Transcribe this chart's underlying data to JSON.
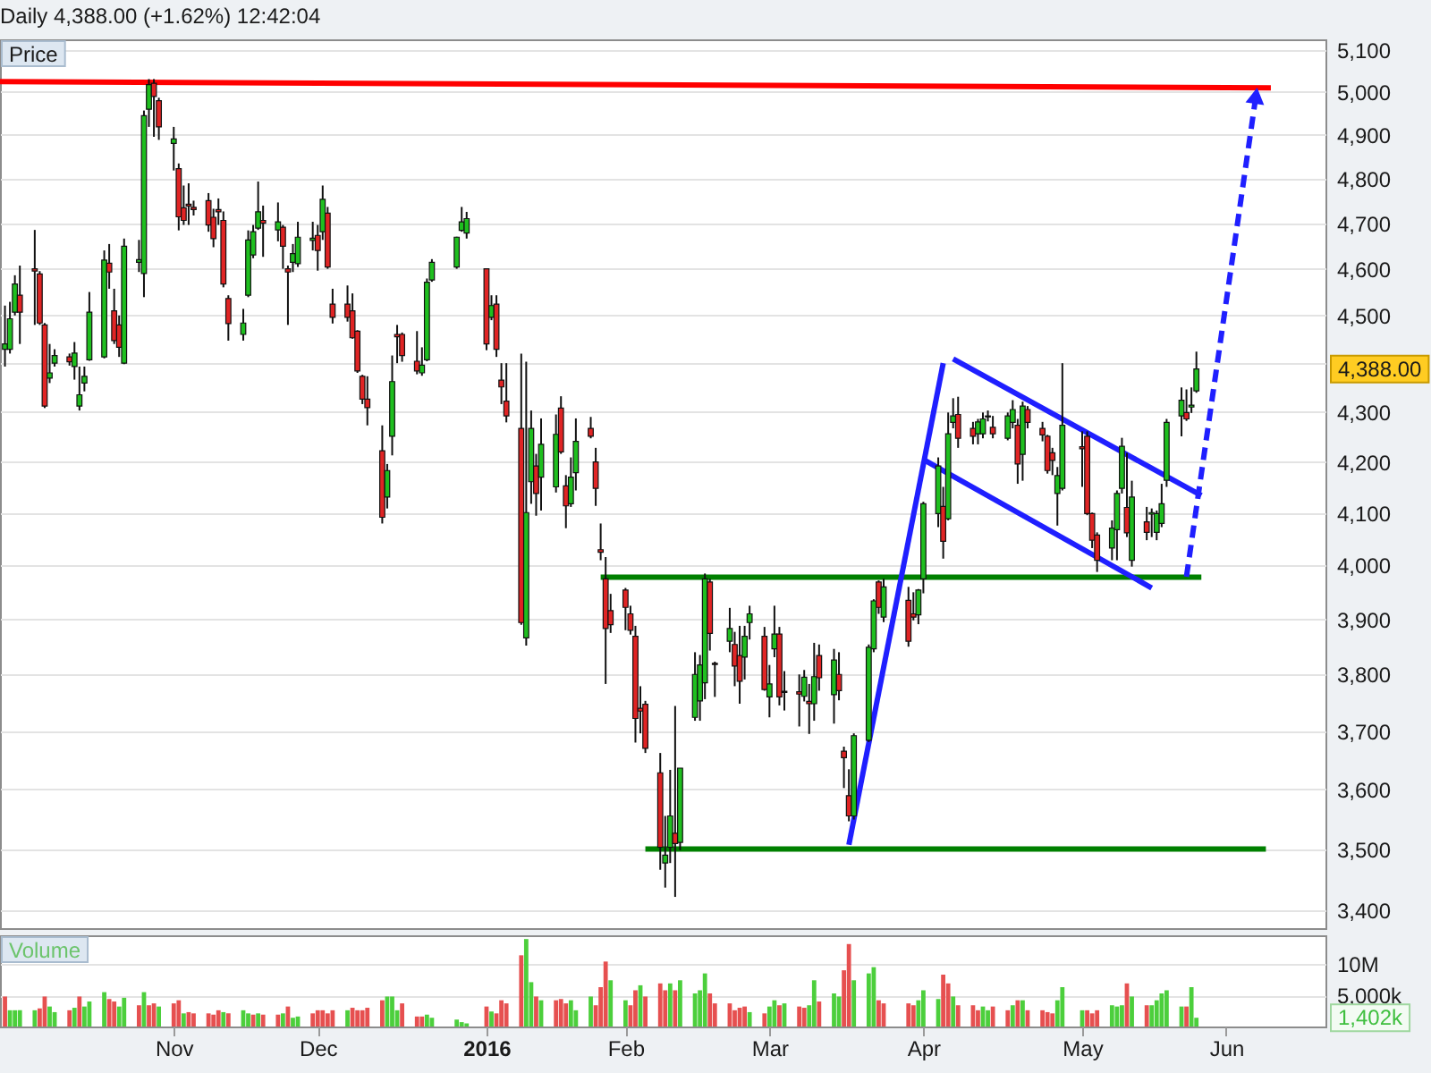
{
  "chart_data": [
    {
      "type": "candlestick",
      "title": "Daily 4,388.00 (+1.62%) 12:42:04",
      "ylabel": "Price",
      "x": [
        "2015-09-29",
        "2015-09-30",
        "2015-10-01",
        "2015-10-02",
        "2015-10-05",
        "2015-10-06",
        "2015-10-07",
        "2015-10-08",
        "2015-10-09",
        "2015-10-12",
        "2015-10-13",
        "2015-10-14",
        "2015-10-15",
        "2015-10-16",
        "2015-10-19",
        "2015-10-20",
        "2015-10-21",
        "2015-10-22",
        "2015-10-23",
        "2015-10-26",
        "2015-10-27",
        "2015-10-28",
        "2015-10-29",
        "2015-10-30",
        "2015-11-02",
        "2015-11-03",
        "2015-11-04",
        "2015-11-05",
        "2015-11-06",
        "2015-11-09",
        "2015-11-10",
        "2015-11-11",
        "2015-11-12",
        "2015-11-13",
        "2015-11-16",
        "2015-11-17",
        "2015-11-18",
        "2015-11-19",
        "2015-11-20",
        "2015-11-23",
        "2015-11-24",
        "2015-11-25",
        "2015-11-26",
        "2015-11-27",
        "2015-11-30",
        "2015-12-01",
        "2015-12-02",
        "2015-12-03",
        "2015-12-04",
        "2015-12-07",
        "2015-12-08",
        "2015-12-09",
        "2015-12-10",
        "2015-12-11",
        "2015-12-14",
        "2015-12-15",
        "2015-12-16",
        "2015-12-17",
        "2015-12-18",
        "2015-12-21",
        "2015-12-22",
        "2015-12-23",
        "2015-12-24",
        "2015-12-29",
        "2015-12-30",
        "2015-12-31",
        "2016-01-04",
        "2016-01-05",
        "2016-01-06",
        "2016-01-07",
        "2016-01-08",
        "2016-01-11",
        "2016-01-12",
        "2016-01-13",
        "2016-01-14",
        "2016-01-15",
        "2016-01-18",
        "2016-01-19",
        "2016-01-20",
        "2016-01-21",
        "2016-01-22",
        "2016-01-25",
        "2016-01-26",
        "2016-01-27",
        "2016-01-28",
        "2016-01-29",
        "2016-02-01",
        "2016-02-02",
        "2016-02-03",
        "2016-02-04",
        "2016-02-05",
        "2016-02-08",
        "2016-02-09",
        "2016-02-10",
        "2016-02-11",
        "2016-02-12",
        "2016-02-15",
        "2016-02-16",
        "2016-02-17",
        "2016-02-18",
        "2016-02-19",
        "2016-02-22",
        "2016-02-23",
        "2016-02-24",
        "2016-02-25",
        "2016-02-26",
        "2016-02-29",
        "2016-03-01",
        "2016-03-02",
        "2016-03-03",
        "2016-03-04",
        "2016-03-07",
        "2016-03-08",
        "2016-03-09",
        "2016-03-10",
        "2016-03-11",
        "2016-03-14",
        "2016-03-15",
        "2016-03-16",
        "2016-03-17",
        "2016-03-18",
        "2016-03-21",
        "2016-03-22",
        "2016-03-23",
        "2016-03-24",
        "2016-03-29",
        "2016-03-30",
        "2016-03-31",
        "2016-04-01",
        "2016-04-04",
        "2016-04-05",
        "2016-04-06",
        "2016-04-07",
        "2016-04-08",
        "2016-04-11",
        "2016-04-12",
        "2016-04-13",
        "2016-04-14",
        "2016-04-15",
        "2016-04-18",
        "2016-04-19",
        "2016-04-20",
        "2016-04-21",
        "2016-04-22",
        "2016-04-25",
        "2016-04-26",
        "2016-04-27",
        "2016-04-28",
        "2016-04-29",
        "2016-05-03",
        "2016-05-04",
        "2016-05-05",
        "2016-05-06",
        "2016-05-09",
        "2016-05-10",
        "2016-05-11",
        "2016-05-12",
        "2016-05-13",
        "2016-05-16",
        "2016-05-17",
        "2016-05-18",
        "2016-05-19",
        "2016-05-20",
        "2016-05-23",
        "2016-05-24",
        "2016-05-25",
        "2016-05-26"
      ],
      "ohlc": [
        [
          4429,
          4521,
          4393,
          4440
        ],
        [
          4429,
          4529,
          4420,
          4493
        ],
        [
          4507,
          4586,
          4500,
          4567
        ],
        [
          4543,
          4607,
          4440,
          4507
        ],
        [
          4600,
          4685,
          4480,
          4595
        ],
        [
          4589,
          4595,
          4480,
          4484
        ],
        [
          4480,
          4484,
          4308,
          4312
        ],
        [
          4369,
          4440,
          4359,
          4380
        ],
        [
          4400,
          4429,
          4393,
          4416
        ],
        [
          4413,
          4420,
          4395,
          4403
        ],
        [
          4393,
          4444,
          4366,
          4421
        ],
        [
          4312,
          4393,
          4303,
          4335
        ],
        [
          4359,
          4393,
          4342,
          4373
        ],
        [
          4407,
          4550,
          4405,
          4507
        ],
        [
          4413,
          4640,
          4410,
          4619
        ],
        [
          4612,
          4654,
          4557,
          4593
        ],
        [
          4510,
          4557,
          4440,
          4447
        ],
        [
          4480,
          4500,
          4413,
          4433
        ],
        [
          4400,
          4666,
          4398,
          4649
        ],
        [
          4614,
          4663,
          4593,
          4620
        ],
        [
          4590,
          4956,
          4539,
          4944
        ],
        [
          4959,
          5030,
          4918,
          5017
        ],
        [
          5020,
          5030,
          4895,
          4989
        ],
        [
          4979,
          4986,
          4888,
          4918
        ],
        [
          4880,
          4918,
          4818,
          4890
        ],
        [
          4822,
          4834,
          4684,
          4714
        ],
        [
          4734,
          4784,
          4696,
          4706
        ],
        [
          4742,
          4789,
          4696,
          4738
        ],
        [
          4735,
          4750,
          4717,
          4730
        ],
        [
          4750,
          4767,
          4681,
          4696
        ],
        [
          4713,
          4732,
          4647,
          4666
        ],
        [
          4730,
          4755,
          4696,
          4725
        ],
        [
          4706,
          4726,
          4560,
          4567
        ],
        [
          4536,
          4543,
          4447,
          4483
        ],
        [
          4460,
          4514,
          4447,
          4484
        ],
        [
          4543,
          4684,
          4539,
          4663
        ],
        [
          4630,
          4696,
          4623,
          4681
        ],
        [
          4689,
          4793,
          4685,
          4725
        ],
        [
          4706,
          4739,
          4626,
          4700
        ],
        [
          4685,
          4746,
          4660,
          4703
        ],
        [
          4691,
          4696,
          4600,
          4649
        ],
        [
          4600,
          4607,
          4480,
          4593
        ],
        [
          4614,
          4654,
          4593,
          4633
        ],
        [
          4611,
          4703,
          4604,
          4669
        ],
        [
          4662,
          4703,
          4640,
          4667
        ],
        [
          4673,
          4696,
          4596,
          4640
        ],
        [
          4681,
          4784,
          4663,
          4753
        ],
        [
          4722,
          4736,
          4600,
          4604
        ],
        [
          4524,
          4557,
          4483,
          4496
        ],
        [
          4524,
          4564,
          4487,
          4496
        ],
        [
          4510,
          4547,
          4451,
          4453
        ],
        [
          4467,
          4469,
          4380,
          4384
        ],
        [
          4373,
          4376,
          4316,
          4326
        ],
        [
          4326,
          4373,
          4273,
          4309
        ],
        [
          4222,
          4273,
          4080,
          4092
        ],
        [
          4131,
          4196,
          4109,
          4183
        ],
        [
          4251,
          4416,
          4213,
          4362
        ],
        [
          4460,
          4480,
          4400,
          4455
        ],
        [
          4460,
          4464,
          4403,
          4416
        ],
        [
          4404,
          4467,
          4377,
          4384
        ],
        [
          4380,
          4433,
          4374,
          4396
        ],
        [
          4407,
          4579,
          4404,
          4571
        ],
        [
          4576,
          4621,
          4572,
          4614
        ],
        [
          4604,
          4670,
          4600,
          4669
        ],
        [
          4684,
          4736,
          4681,
          4703
        ],
        [
          4678,
          4725,
          4666,
          4710
        ],
        [
          4600,
          4600,
          4427,
          4440
        ],
        [
          4496,
          4543,
          4490,
          4521
        ],
        [
          4524,
          4543,
          4413,
          4429
        ],
        [
          4365,
          4400,
          4316,
          4351
        ],
        [
          4322,
          4400,
          4279,
          4292
        ],
        [
          4267,
          4420,
          3890,
          3894
        ],
        [
          3866,
          4403,
          3852,
          4101
        ],
        [
          4161,
          4303,
          4118,
          4267
        ],
        [
          4192,
          4216,
          4095,
          4138
        ],
        [
          4170,
          4287,
          4105,
          4235
        ],
        [
          4151,
          4295,
          4140,
          4255
        ],
        [
          4308,
          4332,
          4216,
          4220
        ],
        [
          4153,
          4174,
          4071,
          4114
        ],
        [
          4118,
          4209,
          4112,
          4170
        ],
        [
          4179,
          4287,
          4144,
          4241
        ],
        [
          4267,
          4290,
          4247,
          4251
        ],
        [
          4200,
          4228,
          4114,
          4148
        ],
        [
          4030,
          4080,
          4010,
          4025
        ],
        [
          3975,
          4016,
          3783,
          3883
        ],
        [
          3916,
          3947,
          3875,
          3890
        ],
        [
          3954,
          3958,
          3880,
          3922
        ],
        [
          3910,
          3925,
          3872,
          3880
        ],
        [
          3869,
          3888,
          3680,
          3722
        ],
        [
          3740,
          3779,
          3696,
          3735
        ],
        [
          3747,
          3753,
          3662,
          3670
        ],
        [
          3628,
          3662,
          3466,
          3503
        ],
        [
          3477,
          3555,
          3437,
          3490
        ],
        [
          3503,
          3633,
          3477,
          3555
        ],
        [
          3526,
          3744,
          3422,
          3509
        ],
        [
          3511,
          3636,
          3498,
          3636
        ],
        [
          3724,
          3840,
          3718,
          3800
        ],
        [
          3753,
          3835,
          3718,
          3817
        ],
        [
          3785,
          3985,
          3756,
          3975
        ],
        [
          3969,
          3975,
          3843,
          3874
        ],
        [
          3820,
          3823,
          3760,
          3818
        ],
        [
          3860,
          3921,
          3840,
          3883
        ],
        [
          3854,
          3877,
          3779,
          3815
        ],
        [
          3834,
          3888,
          3748,
          3788
        ],
        [
          3831,
          3888,
          3791,
          3869
        ],
        [
          3894,
          3925,
          3863,
          3910
        ],
        [
          3869,
          3886,
          3771,
          3773
        ],
        [
          3760,
          3817,
          3724,
          3783
        ],
        [
          3846,
          3925,
          3831,
          3873
        ],
        [
          3873,
          3886,
          3745,
          3760
        ],
        [
          3770,
          3806,
          3736,
          3768
        ],
        [
          3769,
          3800,
          3708,
          3765
        ],
        [
          3761,
          3808,
          3752,
          3795
        ],
        [
          3752,
          3783,
          3695,
          3748
        ],
        [
          3748,
          3857,
          3718,
          3796
        ],
        [
          3834,
          3854,
          3771,
          3794
        ],
        [
          3764,
          3846,
          3713,
          3826
        ],
        [
          3800,
          3840,
          3754,
          3771
        ],
        [
          3665,
          3673,
          3602,
          3654
        ],
        [
          3589,
          3634,
          3546,
          3555
        ],
        [
          3555,
          3696,
          3549,
          3692
        ],
        [
          3684,
          3854,
          3681,
          3849
        ],
        [
          3846,
          3937,
          3840,
          3934
        ],
        [
          3969,
          3972,
          3910,
          3922
        ],
        [
          3904,
          3975,
          3895,
          3960
        ],
        [
          3935,
          3960,
          3850,
          3860
        ],
        [
          3910,
          3950,
          3898,
          3904
        ],
        [
          3908,
          3956,
          3891,
          3954
        ],
        [
          3975,
          4122,
          3948,
          4118
        ],
        [
          4099,
          4209,
          4073,
          4192
        ],
        [
          4113,
          4151,
          4013,
          4046
        ],
        [
          4089,
          4299,
          4086,
          4256
        ],
        [
          4279,
          4328,
          4267,
          4292
        ],
        [
          4295,
          4331,
          4228,
          4247
        ],
        [
          4267,
          4280,
          4235,
          4251
        ],
        [
          4256,
          4286,
          4235,
          4280
        ],
        [
          4256,
          4299,
          4247,
          4286
        ],
        [
          4290,
          4303,
          4281,
          4292
        ],
        [
          4269,
          4292,
          4247,
          4256
        ],
        [
          4247,
          4299,
          4243,
          4292
        ],
        [
          4279,
          4324,
          4267,
          4305
        ],
        [
          4273,
          4286,
          4157,
          4196
        ],
        [
          4215,
          4321,
          4163,
          4312
        ],
        [
          4305,
          4312,
          4267,
          4279
        ],
        [
          4267,
          4280,
          4241,
          4254
        ],
        [
          4251,
          4254,
          4177,
          4183
        ],
        [
          4218,
          4228,
          4174,
          4203
        ],
        [
          4138,
          4190,
          4076,
          4173
        ],
        [
          4148,
          4400,
          4144,
          4273
        ],
        [
          4230,
          4261,
          4151,
          4226
        ],
        [
          4251,
          4261,
          4096,
          4099
        ],
        [
          4099,
          4101,
          4033,
          4048
        ],
        [
          4058,
          4063,
          3988,
          4010
        ],
        [
          4033,
          4086,
          4010,
          4071
        ],
        [
          4068,
          4144,
          4010,
          4138
        ],
        [
          4148,
          4248,
          4138,
          4231
        ],
        [
          4111,
          4218,
          4054,
          4062
        ],
        [
          4010,
          4163,
          3998,
          4131
        ],
        [
          4083,
          4112,
          4048,
          4063
        ],
        [
          4098,
          4109,
          4054,
          4101
        ],
        [
          4063,
          4105,
          4048,
          4099
        ],
        [
          4080,
          4157,
          4073,
          4118
        ],
        [
          4164,
          4286,
          4151,
          4279
        ],
        [
          4292,
          4350,
          4251,
          4324
        ],
        [
          4299,
          4346,
          4282,
          4286
        ],
        [
          4310,
          4350,
          4298,
          4314
        ],
        [
          4343,
          4424,
          4339,
          4388
        ]
      ],
      "colors": [
        "#1fbf1f",
        "#1fbf1f",
        "#1fbf1f",
        "#e02424",
        "#e02424",
        "#e02424",
        "#e02424",
        "#1fbf1f",
        "#1fbf1f",
        "#e02424",
        "#1fbf1f",
        "#1fbf1f",
        "#1fbf1f",
        "#1fbf1f",
        "#1fbf1f",
        "#e02424",
        "#e02424",
        "#e02424",
        "#1fbf1f",
        "#1fbf1f",
        "#1fbf1f",
        "#1fbf1f",
        "#e02424",
        "#e02424",
        "#1fbf1f",
        "#e02424",
        "#e02424",
        "#e02424",
        "#e02424",
        "#e02424",
        "#e02424",
        "#e02424",
        "#e02424",
        "#e02424",
        "#1fbf1f",
        "#1fbf1f",
        "#1fbf1f",
        "#1fbf1f",
        "#e02424",
        "#1fbf1f",
        "#e02424",
        "#e02424",
        "#1fbf1f",
        "#1fbf1f",
        "#1fbf1f",
        "#e02424",
        "#1fbf1f",
        "#e02424",
        "#e02424",
        "#e02424",
        "#e02424",
        "#e02424",
        "#e02424",
        "#e02424",
        "#e02424",
        "#1fbf1f",
        "#1fbf1f",
        "#e02424",
        "#e02424",
        "#e02424",
        "#1fbf1f",
        "#1fbf1f",
        "#1fbf1f",
        "#1fbf1f",
        "#1fbf1f",
        "#1fbf1f",
        "#e02424",
        "#1fbf1f",
        "#e02424",
        "#e02424",
        "#e02424",
        "#e02424",
        "#1fbf1f",
        "#1fbf1f",
        "#e02424",
        "#1fbf1f",
        "#1fbf1f",
        "#e02424",
        "#e02424",
        "#1fbf1f",
        "#1fbf1f",
        "#e02424",
        "#e02424",
        "#e02424",
        "#e02424",
        "#e02424",
        "#e02424",
        "#e02424",
        "#e02424",
        "#e02424",
        "#e02424",
        "#e02424",
        "#1fbf1f",
        "#1fbf1f",
        "#e02424",
        "#1fbf1f",
        "#1fbf1f",
        "#1fbf1f",
        "#1fbf1f",
        "#e02424",
        "#e02424",
        "#1fbf1f",
        "#e02424",
        "#e02424",
        "#1fbf1f",
        "#1fbf1f",
        "#e02424",
        "#1fbf1f",
        "#1fbf1f",
        "#e02424",
        "#e02424",
        "#e02424",
        "#1fbf1f",
        "#e02424",
        "#1fbf1f",
        "#e02424",
        "#1fbf1f",
        "#e02424",
        "#e02424",
        "#e02424",
        "#1fbf1f",
        "#1fbf1f",
        "#1fbf1f",
        "#e02424",
        "#1fbf1f",
        "#e02424",
        "#e02424",
        "#1fbf1f",
        "#1fbf1f",
        "#1fbf1f",
        "#e02424",
        "#1fbf1f",
        "#1fbf1f",
        "#e02424",
        "#e02424",
        "#1fbf1f",
        "#1fbf1f",
        "#1fbf1f",
        "#e02424",
        "#1fbf1f",
        "#1fbf1f",
        "#e02424",
        "#1fbf1f",
        "#e02424",
        "#e02424",
        "#e02424",
        "#e02424",
        "#1fbf1f",
        "#1fbf1f",
        "#e02424",
        "#e02424",
        "#e02424",
        "#e02424",
        "#1fbf1f",
        "#1fbf1f",
        "#1fbf1f",
        "#e02424",
        "#1fbf1f",
        "#e02424",
        "#1fbf1f",
        "#1fbf1f",
        "#1fbf1f",
        "#1fbf1f",
        "#1fbf1f",
        "#e02424",
        "#1fbf1f",
        "#1fbf1f"
      ],
      "series": [
        {
          "type": "line",
          "x": [
            "2015-09-28",
            "2016-06-10"
          ],
          "values": [
            5024,
            5009
          ],
          "color": "#ff0000"
        },
        {
          "type": "line",
          "x": [
            "2016-01-27",
            "2016-05-27"
          ],
          "values": [
            3978,
            3978
          ],
          "color": "#008000"
        },
        {
          "type": "line",
          "x": [
            "2016-02-05",
            "2016-06-09"
          ],
          "values": [
            3500,
            3500
          ],
          "color": "#008000"
        },
        {
          "type": "line",
          "x": [
            "2016-03-17",
            "2016-04-05"
          ],
          "values": [
            3507,
            4400
          ],
          "color": "#1f1fff"
        },
        {
          "type": "line",
          "x": [
            "2016-04-07",
            "2016-05-27"
          ],
          "values": [
            4409,
            4134
          ],
          "color": "#1f1fff"
        },
        {
          "type": "line",
          "x": [
            "2016-04-01",
            "2016-05-17"
          ],
          "values": [
            4205,
            3958
          ],
          "color": "#1f1fff"
        },
        {
          "type": "line",
          "x": [
            "2016-05-24",
            "2016-06-07"
          ],
          "values": [
            3979,
            4991
          ],
          "color": "#1f1fff",
          "line_style": "dashed"
        }
      ],
      "xlim": [
        "2015-09-28",
        "2016-06-21"
      ],
      "ylim": [
        3372,
        5125
      ],
      "yticks": [
        {
          "value": 3400,
          "label": "3,400"
        },
        {
          "value": 3500,
          "label": "3,500"
        },
        {
          "value": 3600,
          "label": "3,600"
        },
        {
          "value": 3700,
          "label": "3,700"
        },
        {
          "value": 3800,
          "label": "3,800"
        },
        {
          "value": 3900,
          "label": "3,900"
        },
        {
          "value": 4000,
          "label": "4,000"
        },
        {
          "value": 4100,
          "label": "4,100"
        },
        {
          "value": 4200,
          "label": "4,200"
        },
        {
          "value": 4300,
          "label": "4,300"
        },
        {
          "value": 4400,
          "label": null
        },
        {
          "value": 4500,
          "label": "4,500"
        },
        {
          "value": 4600,
          "label": "4,600"
        },
        {
          "value": 4700,
          "label": "4,700"
        },
        {
          "value": 4800,
          "label": "4,800"
        },
        {
          "value": 4900,
          "label": "4,900"
        },
        {
          "value": 5000,
          "label": "5,000"
        },
        {
          "value": 5100,
          "label": "5,100"
        }
      ],
      "log": true,
      "grid": "y",
      "tick_labels": "y",
      "annotations": [
        "4,388.00"
      ]
    },
    {
      "type": "bar",
      "ylabel": "Volume",
      "x": [
        "2015-09-29",
        "2015-09-30",
        "2015-10-01",
        "2015-10-02",
        "2015-10-05",
        "2015-10-06",
        "2015-10-07",
        "2015-10-08",
        "2015-10-09",
        "2015-10-12",
        "2015-10-13",
        "2015-10-14",
        "2015-10-15",
        "2015-10-16",
        "2015-10-19",
        "2015-10-20",
        "2015-10-21",
        "2015-10-22",
        "2015-10-23",
        "2015-10-26",
        "2015-10-27",
        "2015-10-28",
        "2015-10-29",
        "2015-10-30",
        "2015-11-02",
        "2015-11-03",
        "2015-11-04",
        "2015-11-05",
        "2015-11-06",
        "2015-11-09",
        "2015-11-10",
        "2015-11-11",
        "2015-11-12",
        "2015-11-13",
        "2015-11-16",
        "2015-11-17",
        "2015-11-18",
        "2015-11-19",
        "2015-11-20",
        "2015-11-23",
        "2015-11-24",
        "2015-11-25",
        "2015-11-26",
        "2015-11-27",
        "2015-11-30",
        "2015-12-01",
        "2015-12-02",
        "2015-12-03",
        "2015-12-04",
        "2015-12-07",
        "2015-12-08",
        "2015-12-09",
        "2015-12-10",
        "2015-12-11",
        "2015-12-14",
        "2015-12-15",
        "2015-12-16",
        "2015-12-17",
        "2015-12-18",
        "2015-12-21",
        "2015-12-22",
        "2015-12-23",
        "2015-12-24",
        "2015-12-29",
        "2015-12-30",
        "2015-12-31",
        "2016-01-04",
        "2016-01-05",
        "2016-01-06",
        "2016-01-07",
        "2016-01-08",
        "2016-01-11",
        "2016-01-12",
        "2016-01-13",
        "2016-01-14",
        "2016-01-15",
        "2016-01-18",
        "2016-01-19",
        "2016-01-20",
        "2016-01-21",
        "2016-01-22",
        "2016-01-25",
        "2016-01-26",
        "2016-01-27",
        "2016-01-28",
        "2016-01-29",
        "2016-02-01",
        "2016-02-02",
        "2016-02-03",
        "2016-02-04",
        "2016-02-05",
        "2016-02-08",
        "2016-02-09",
        "2016-02-10",
        "2016-02-11",
        "2016-02-12",
        "2016-02-15",
        "2016-02-16",
        "2016-02-17",
        "2016-02-18",
        "2016-02-19",
        "2016-02-22",
        "2016-02-23",
        "2016-02-24",
        "2016-02-25",
        "2016-02-26",
        "2016-02-29",
        "2016-03-01",
        "2016-03-02",
        "2016-03-03",
        "2016-03-04",
        "2016-03-07",
        "2016-03-08",
        "2016-03-09",
        "2016-03-10",
        "2016-03-11",
        "2016-03-14",
        "2016-03-15",
        "2016-03-16",
        "2016-03-17",
        "2016-03-18",
        "2016-03-21",
        "2016-03-22",
        "2016-03-23",
        "2016-03-24",
        "2016-03-29",
        "2016-03-30",
        "2016-03-31",
        "2016-04-01",
        "2016-04-04",
        "2016-04-05",
        "2016-04-06",
        "2016-04-07",
        "2016-04-08",
        "2016-04-11",
        "2016-04-12",
        "2016-04-13",
        "2016-04-14",
        "2016-04-15",
        "2016-04-18",
        "2016-04-19",
        "2016-04-20",
        "2016-04-21",
        "2016-04-22",
        "2016-04-25",
        "2016-04-26",
        "2016-04-27",
        "2016-04-28",
        "2016-04-29",
        "2016-05-03",
        "2016-05-04",
        "2016-05-05",
        "2016-05-06",
        "2016-05-09",
        "2016-05-10",
        "2016-05-11",
        "2016-05-12",
        "2016-05-13",
        "2016-05-16",
        "2016-05-17",
        "2016-05-18",
        "2016-05-19",
        "2016-05-20",
        "2016-05-23",
        "2016-05-24",
        "2016-05-25",
        "2016-05-26"
      ],
      "values": [
        4800000,
        2600000,
        2600000,
        2600000,
        2600000,
        2900000,
        4800000,
        3200000,
        2300000,
        2600000,
        3000000,
        4800000,
        3200000,
        4000000,
        5500000,
        4400000,
        4000000,
        3200000,
        4600000,
        3400000,
        5500000,
        3400000,
        3700000,
        3200000,
        3700000,
        4200000,
        2100000,
        2300000,
        2100000,
        2100000,
        1900000,
        2600000,
        2300000,
        2100000,
        2600000,
        2100000,
        1900000,
        2100000,
        1900000,
        1900000,
        2100000,
        3200000,
        1400000,
        1600000,
        2100000,
        2600000,
        2600000,
        2100000,
        2600000,
        2600000,
        3000000,
        2600000,
        2600000,
        3000000,
        4200000,
        4800000,
        4800000,
        2600000,
        3700000,
        1600000,
        1600000,
        1900000,
        1400000,
        1100000,
        700000,
        500000,
        3200000,
        2400000,
        2100000,
        4200000,
        3700000,
        11400000,
        14000000,
        7100000,
        4800000,
        4200000,
        4200000,
        4400000,
        3700000,
        4200000,
        2600000,
        4800000,
        3400000,
        6300000,
        10400000,
        7400000,
        4200000,
        3400000,
        5800000,
        6600000,
        4800000,
        6900000,
        5800000,
        6900000,
        5800000,
        7400000,
        5300000,
        5800000,
        8500000,
        5300000,
        3700000,
        3700000,
        2600000,
        3000000,
        3200000,
        2300000,
        2100000,
        3200000,
        4200000,
        3400000,
        3700000,
        3200000,
        3000000,
        3400000,
        7400000,
        4000000,
        5300000,
        4800000,
        9000000,
        13200000,
        7400000,
        8500000,
        9500000,
        4200000,
        3700000,
        3700000,
        3400000,
        4200000,
        5800000,
        4400000,
        8300000,
        6900000,
        4800000,
        3400000,
        3400000,
        2600000,
        3200000,
        2600000,
        3200000,
        2600000,
        3400000,
        4200000,
        4200000,
        2600000,
        2600000,
        2300000,
        2100000,
        4200000,
        6300000,
        2600000,
        2600000,
        2100000,
        2600000,
        3400000,
        3200000,
        3400000,
        6900000,
        4800000,
        3400000,
        3400000,
        4200000,
        5300000,
        5800000,
        3200000,
        3200000,
        6300000,
        1402000
      ],
      "colors": [
        "#e65050",
        "#4ccf3c",
        "#4ccf3c",
        "#4ccf3c",
        "#4ccf3c",
        "#e65050",
        "#e65050",
        "#4ccf3c",
        "#4ccf3c",
        "#e65050",
        "#4ccf3c",
        "#e65050",
        "#4ccf3c",
        "#4ccf3c",
        "#4ccf3c",
        "#e65050",
        "#e65050",
        "#4ccf3c",
        "#4ccf3c",
        "#e65050",
        "#4ccf3c",
        "#e65050",
        "#e65050",
        "#4ccf3c",
        "#e65050",
        "#e65050",
        "#4ccf3c",
        "#e65050",
        "#e65050",
        "#e65050",
        "#e65050",
        "#e65050",
        "#4ccf3c",
        "#e65050",
        "#4ccf3c",
        "#4ccf3c",
        "#e65050",
        "#4ccf3c",
        "#e65050",
        "#e65050",
        "#4ccf3c",
        "#e65050",
        "#4ccf3c",
        "#4ccf3c",
        "#e65050",
        "#e65050",
        "#e65050",
        "#e65050",
        "#e65050",
        "#4ccf3c",
        "#e65050",
        "#e65050",
        "#e65050",
        "#e65050",
        "#e65050",
        "#4ccf3c",
        "#4ccf3c",
        "#4ccf3c",
        "#e65050",
        "#e65050",
        "#e65050",
        "#4ccf3c",
        "#4ccf3c",
        "#4ccf3c",
        "#4ccf3c",
        "#4ccf3c",
        "#e65050",
        "#4ccf3c",
        "#e65050",
        "#e65050",
        "#e65050",
        "#e65050",
        "#4ccf3c",
        "#4ccf3c",
        "#e65050",
        "#4ccf3c",
        "#e65050",
        "#e65050",
        "#e65050",
        "#4ccf3c",
        "#4ccf3c",
        "#4ccf3c",
        "#e65050",
        "#e65050",
        "#e65050",
        "#4ccf3c",
        "#4ccf3c",
        "#e65050",
        "#e65050",
        "#4ccf3c",
        "#e65050",
        "#e65050",
        "#e65050",
        "#4ccf3c",
        "#e65050",
        "#4ccf3c",
        "#4ccf3c",
        "#4ccf3c",
        "#4ccf3c",
        "#e65050",
        "#e65050",
        "#e65050",
        "#e65050",
        "#e65050",
        "#e65050",
        "#4ccf3c",
        "#e65050",
        "#4ccf3c",
        "#4ccf3c",
        "#e65050",
        "#4ccf3c",
        "#e65050",
        "#e65050",
        "#4ccf3c",
        "#4ccf3c",
        "#e65050",
        "#4ccf3c",
        "#4ccf3c",
        "#e65050",
        "#e65050",
        "#4ccf3c",
        "#4ccf3c",
        "#4ccf3c",
        "#e65050",
        "#e65050",
        "#e65050",
        "#e65050",
        "#4ccf3c",
        "#4ccf3c",
        "#4ccf3c",
        "#e65050",
        "#e65050",
        "#4ccf3c",
        "#e65050",
        "#e65050",
        "#e65050",
        "#4ccf3c",
        "#4ccf3c",
        "#e65050",
        "#e65050",
        "#4ccf3c",
        "#e65050",
        "#4ccf3c",
        "#e65050",
        "#e65050",
        "#e65050",
        "#e65050",
        "#4ccf3c",
        "#4ccf3c",
        "#4ccf3c",
        "#e65050",
        "#e65050",
        "#e65050",
        "#4ccf3c",
        "#4ccf3c",
        "#4ccf3c",
        "#e65050",
        "#4ccf3c",
        "#e65050",
        "#4ccf3c",
        "#4ccf3c",
        "#4ccf3c",
        "#4ccf3c",
        "#4ccf3c",
        "#e65050",
        "#4ccf3c",
        "#4ccf3c"
      ],
      "xlim": [
        "2015-09-28",
        "2016-06-21"
      ],
      "xticks": [
        {
          "value": "2015-11-02",
          "label": "Nov"
        },
        {
          "value": "2015-12-01",
          "label": "Dec"
        },
        {
          "value": "2016-01-04",
          "label": "2016"
        },
        {
          "value": "2016-02-01",
          "label": "Feb"
        },
        {
          "value": "2016-03-01",
          "label": "Mar"
        },
        {
          "value": "2016-04-01",
          "label": "Apr"
        },
        {
          "value": "2016-05-03",
          "label": "May"
        },
        {
          "value": "2016-06-01",
          "label": "Jun"
        }
      ],
      "ylim": [
        0,
        14600000
      ],
      "yticks": [
        {
          "value": 5000000,
          "label": "5,000k"
        },
        {
          "value": 10000000,
          "label": "10M"
        }
      ],
      "grid": "y",
      "annotations": [
        "1,402k"
      ]
    }
  ]
}
